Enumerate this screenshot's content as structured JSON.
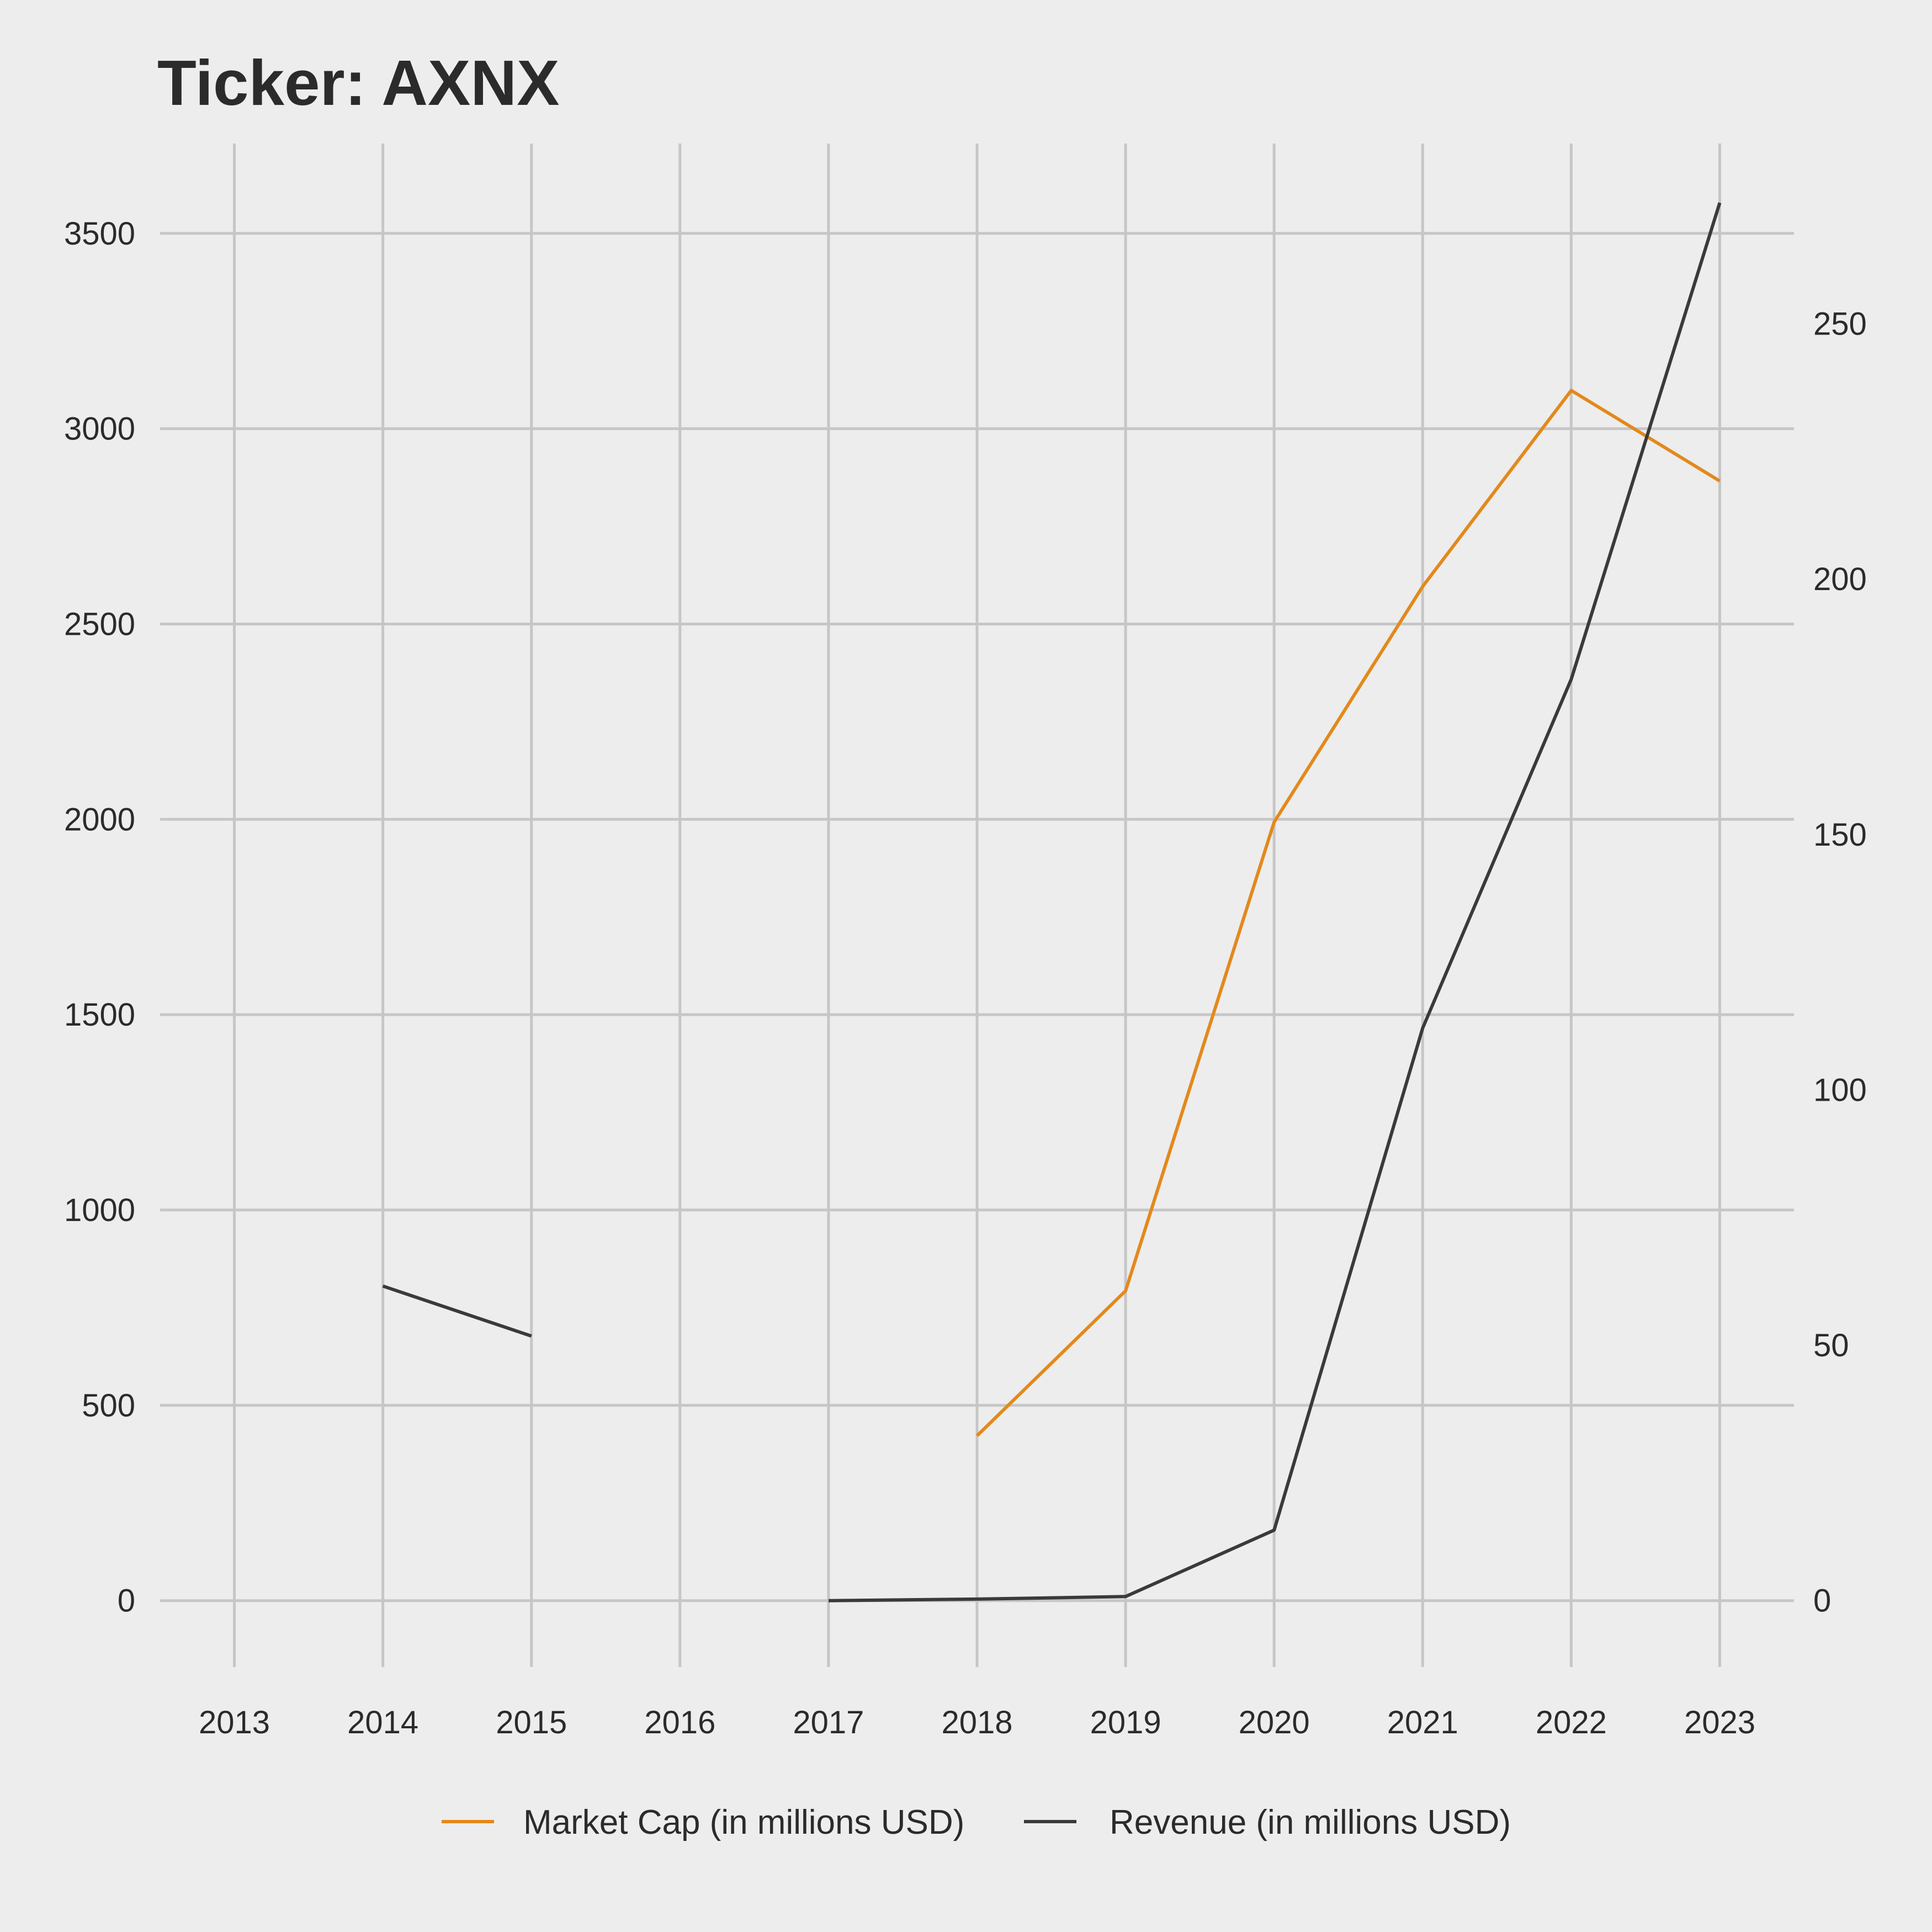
{
  "chart_data": {
    "type": "line",
    "title": "Ticker: AXNX",
    "x": [
      2013,
      2014,
      2015,
      2016,
      2017,
      2018,
      2019,
      2020,
      2021,
      2022,
      2023
    ],
    "xlim": [
      2012.5,
      2023.5
    ],
    "y_left_ticks": [
      0,
      500,
      1000,
      1500,
      2000,
      2500,
      3000,
      3500
    ],
    "ylim_left": [
      -170,
      3730
    ],
    "y_right_ticks": [
      0,
      50,
      100,
      150,
      200,
      250
    ],
    "ylim_right": [
      -13.0,
      285.3
    ],
    "grid": true,
    "legend_position": "bottom",
    "series": [
      {
        "name": "Market Cap (in millions USD)",
        "axis": "left",
        "color": "#e3891c",
        "values": [
          null,
          null,
          null,
          null,
          null,
          422,
          793,
          1993,
          2596,
          3098,
          2866
        ]
      },
      {
        "name": "Revenue (in millions USD)",
        "axis": "right",
        "color": "#3a3a3a",
        "values": [
          null,
          61.6,
          51.8,
          null,
          0.0,
          0.3,
          0.8,
          13.8,
          112.1,
          180.4,
          273.7
        ]
      }
    ]
  }
}
